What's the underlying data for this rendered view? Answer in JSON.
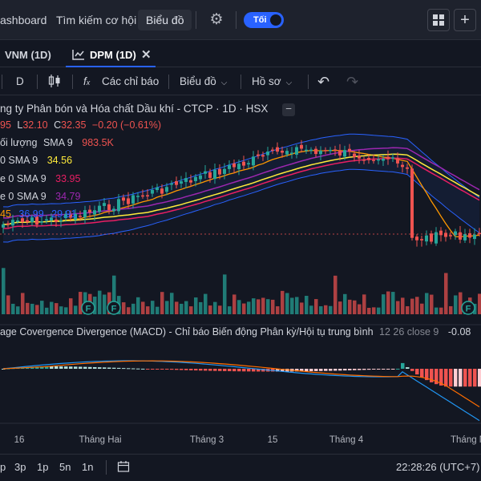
{
  "topbar": {
    "dashboard_label": "ashboard",
    "search_label": "Tìm kiếm cơ hội",
    "chart_label": "Biểu đồ",
    "theme_toggle_label": "Tối"
  },
  "tabs": [
    {
      "label": "VNM (1D)"
    },
    {
      "label": "DPM (1D)"
    }
  ],
  "toolbar": {
    "interval": "D",
    "indicators": "Các chỉ báo",
    "chart": "Biểu đồ",
    "profile": "Hồ sơ"
  },
  "legend": {
    "title": "ng ty Phân bón và Hóa chất Dầu khí - CTCP · 1D · HSX",
    "o_val": "95",
    "l_label": "L",
    "l_val": "32.10",
    "c_label": "C",
    "c_val": "32.35",
    "change": "−0.20 (−0.61%)",
    "volume_label": "ối lượng",
    "volume_sma": "SMA 9",
    "volume_val": "983.5K",
    "ma1_label": "0 SMA 9",
    "ma1_val": "34.56",
    "ma2_label": "e 0 SMA 9",
    "ma2_val": "33.95",
    "ma3_label": "e 0 SMA 9",
    "ma3_val": "34.79",
    "bb_v1": "45",
    "bb_v2": "36.99",
    "bb_v3": "29.91",
    "macd_title": "age Covergence Divergence (MACD) - Chỉ báo Biến động Phân kỳ/Hội tụ trung bình",
    "macd_params": "12 26 close 9",
    "macd_val": "-0.08",
    "fa_marker": "F"
  },
  "time_axis": [
    "16",
    "Tháng Hai",
    "Tháng 3",
    "15",
    "Tháng 4",
    "Tháng N"
  ],
  "bottombar": {
    "ranges": [
      "p",
      "3p",
      "1p",
      "5n",
      "1n"
    ],
    "clock": "22:28:26 (UTC+7)"
  },
  "colors": {
    "up": "#26a69a",
    "down": "#ef5350",
    "bb_band": "#2962ff",
    "ma_yellow": "#ffeb3b",
    "ma_orange": "#ff9800",
    "ma_purple": "#9c27b0",
    "ma_pink": "#e91e63",
    "macd_line": "#2196f3",
    "signal_line": "#ff6d00",
    "accent": "#2962ff"
  },
  "chart_data": {
    "type": "candlestick",
    "symbol": "DPM",
    "interval": "1D",
    "x_ticks": [
      "16",
      "Tháng Hai",
      "Tháng 3",
      "15",
      "Tháng 4",
      "Tháng N"
    ],
    "last_close": 32.35,
    "last_low": 32.1,
    "last_change": -0.2,
    "last_change_pct": -0.61,
    "volume_sma9": "983.5K",
    "sma_values": [
      34.56,
      33.95,
      34.79
    ],
    "bollinger": [
      36.99,
      29.91
    ],
    "macd": -0.08,
    "macd_params": [
      12,
      26,
      9
    ]
  }
}
